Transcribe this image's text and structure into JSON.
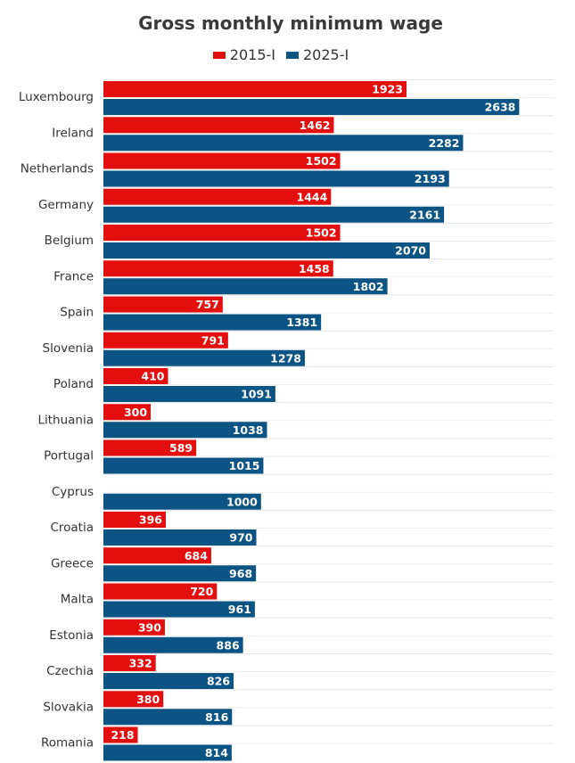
{
  "title": "Gross monthly minimum wage",
  "legend": [
    {
      "label": "2015-I",
      "color": "#e30f0f"
    },
    {
      "label": "2025-I",
      "color": "#0c5483"
    }
  ],
  "chart_data": {
    "type": "bar",
    "orientation": "horizontal",
    "title": "Gross monthly minimum wage",
    "xlabel": "",
    "ylabel": "",
    "categories": [
      "Luxembourg",
      "Ireland",
      "Netherlands",
      "Germany",
      "Belgium",
      "France",
      "Spain",
      "Slovenia",
      "Poland",
      "Lithuania",
      "Portugal",
      "Cyprus",
      "Croatia",
      "Greece",
      "Malta",
      "Estonia",
      "Czechia",
      "Slovakia",
      "Romania"
    ],
    "series": [
      {
        "name": "2015-I",
        "color": "#e30f0f",
        "values": [
          1923,
          1462,
          1502,
          1444,
          1502,
          1458,
          757,
          791,
          410,
          300,
          589,
          null,
          396,
          684,
          720,
          390,
          332,
          380,
          218
        ]
      },
      {
        "name": "2025-I",
        "color": "#0c5483",
        "values": [
          2638,
          2282,
          2193,
          2161,
          2070,
          1802,
          1381,
          1278,
          1091,
          1038,
          1015,
          1000,
          970,
          968,
          961,
          886,
          826,
          816,
          814
        ]
      }
    ],
    "xlim": [
      0,
      2800
    ],
    "grid": "horizontal separators",
    "legend_position": "top"
  }
}
